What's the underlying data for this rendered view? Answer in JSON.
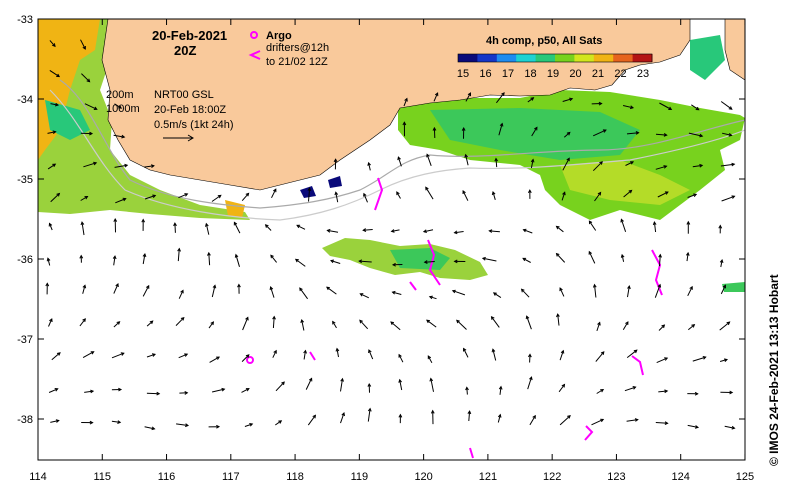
{
  "map": {
    "date_title": "20-Feb-2021",
    "time_title": "20Z",
    "argo_label": "Argo",
    "drifter_label_1": "drifters@12h",
    "drifter_label_2": "to 21/02 12Z",
    "colorbar_title": "4h comp, p50, All Sats",
    "colorbar_ticks": [
      "15",
      "16",
      "17",
      "18",
      "19",
      "20",
      "21",
      "22",
      "23"
    ],
    "colorbar_colors": [
      "#0a0a7a",
      "#1436c8",
      "#1e8cf0",
      "#1ed2d2",
      "#28c87a",
      "#78d21e",
      "#d2e61e",
      "#f0b414",
      "#e6641e",
      "#b41414"
    ],
    "isobath_200": "200m",
    "isobath_1000": "1000m",
    "current_source": "NRT00 GSL",
    "current_time": "20-Feb 18:00Z",
    "vector_scale": "0.5m/s (1kt 24h)",
    "credit": "© IMOS 24-Feb-2021 13:13 Hobart",
    "lat_ticks": [
      "-33",
      "-34",
      "-35",
      "-36",
      "-37",
      "-38"
    ],
    "lon_ticks": [
      "114",
      "115",
      "116",
      "117",
      "118",
      "119",
      "120",
      "121",
      "122",
      "123",
      "124",
      "125"
    ],
    "land_color": "#f9c99b",
    "argo_color": "#ff00ff"
  }
}
